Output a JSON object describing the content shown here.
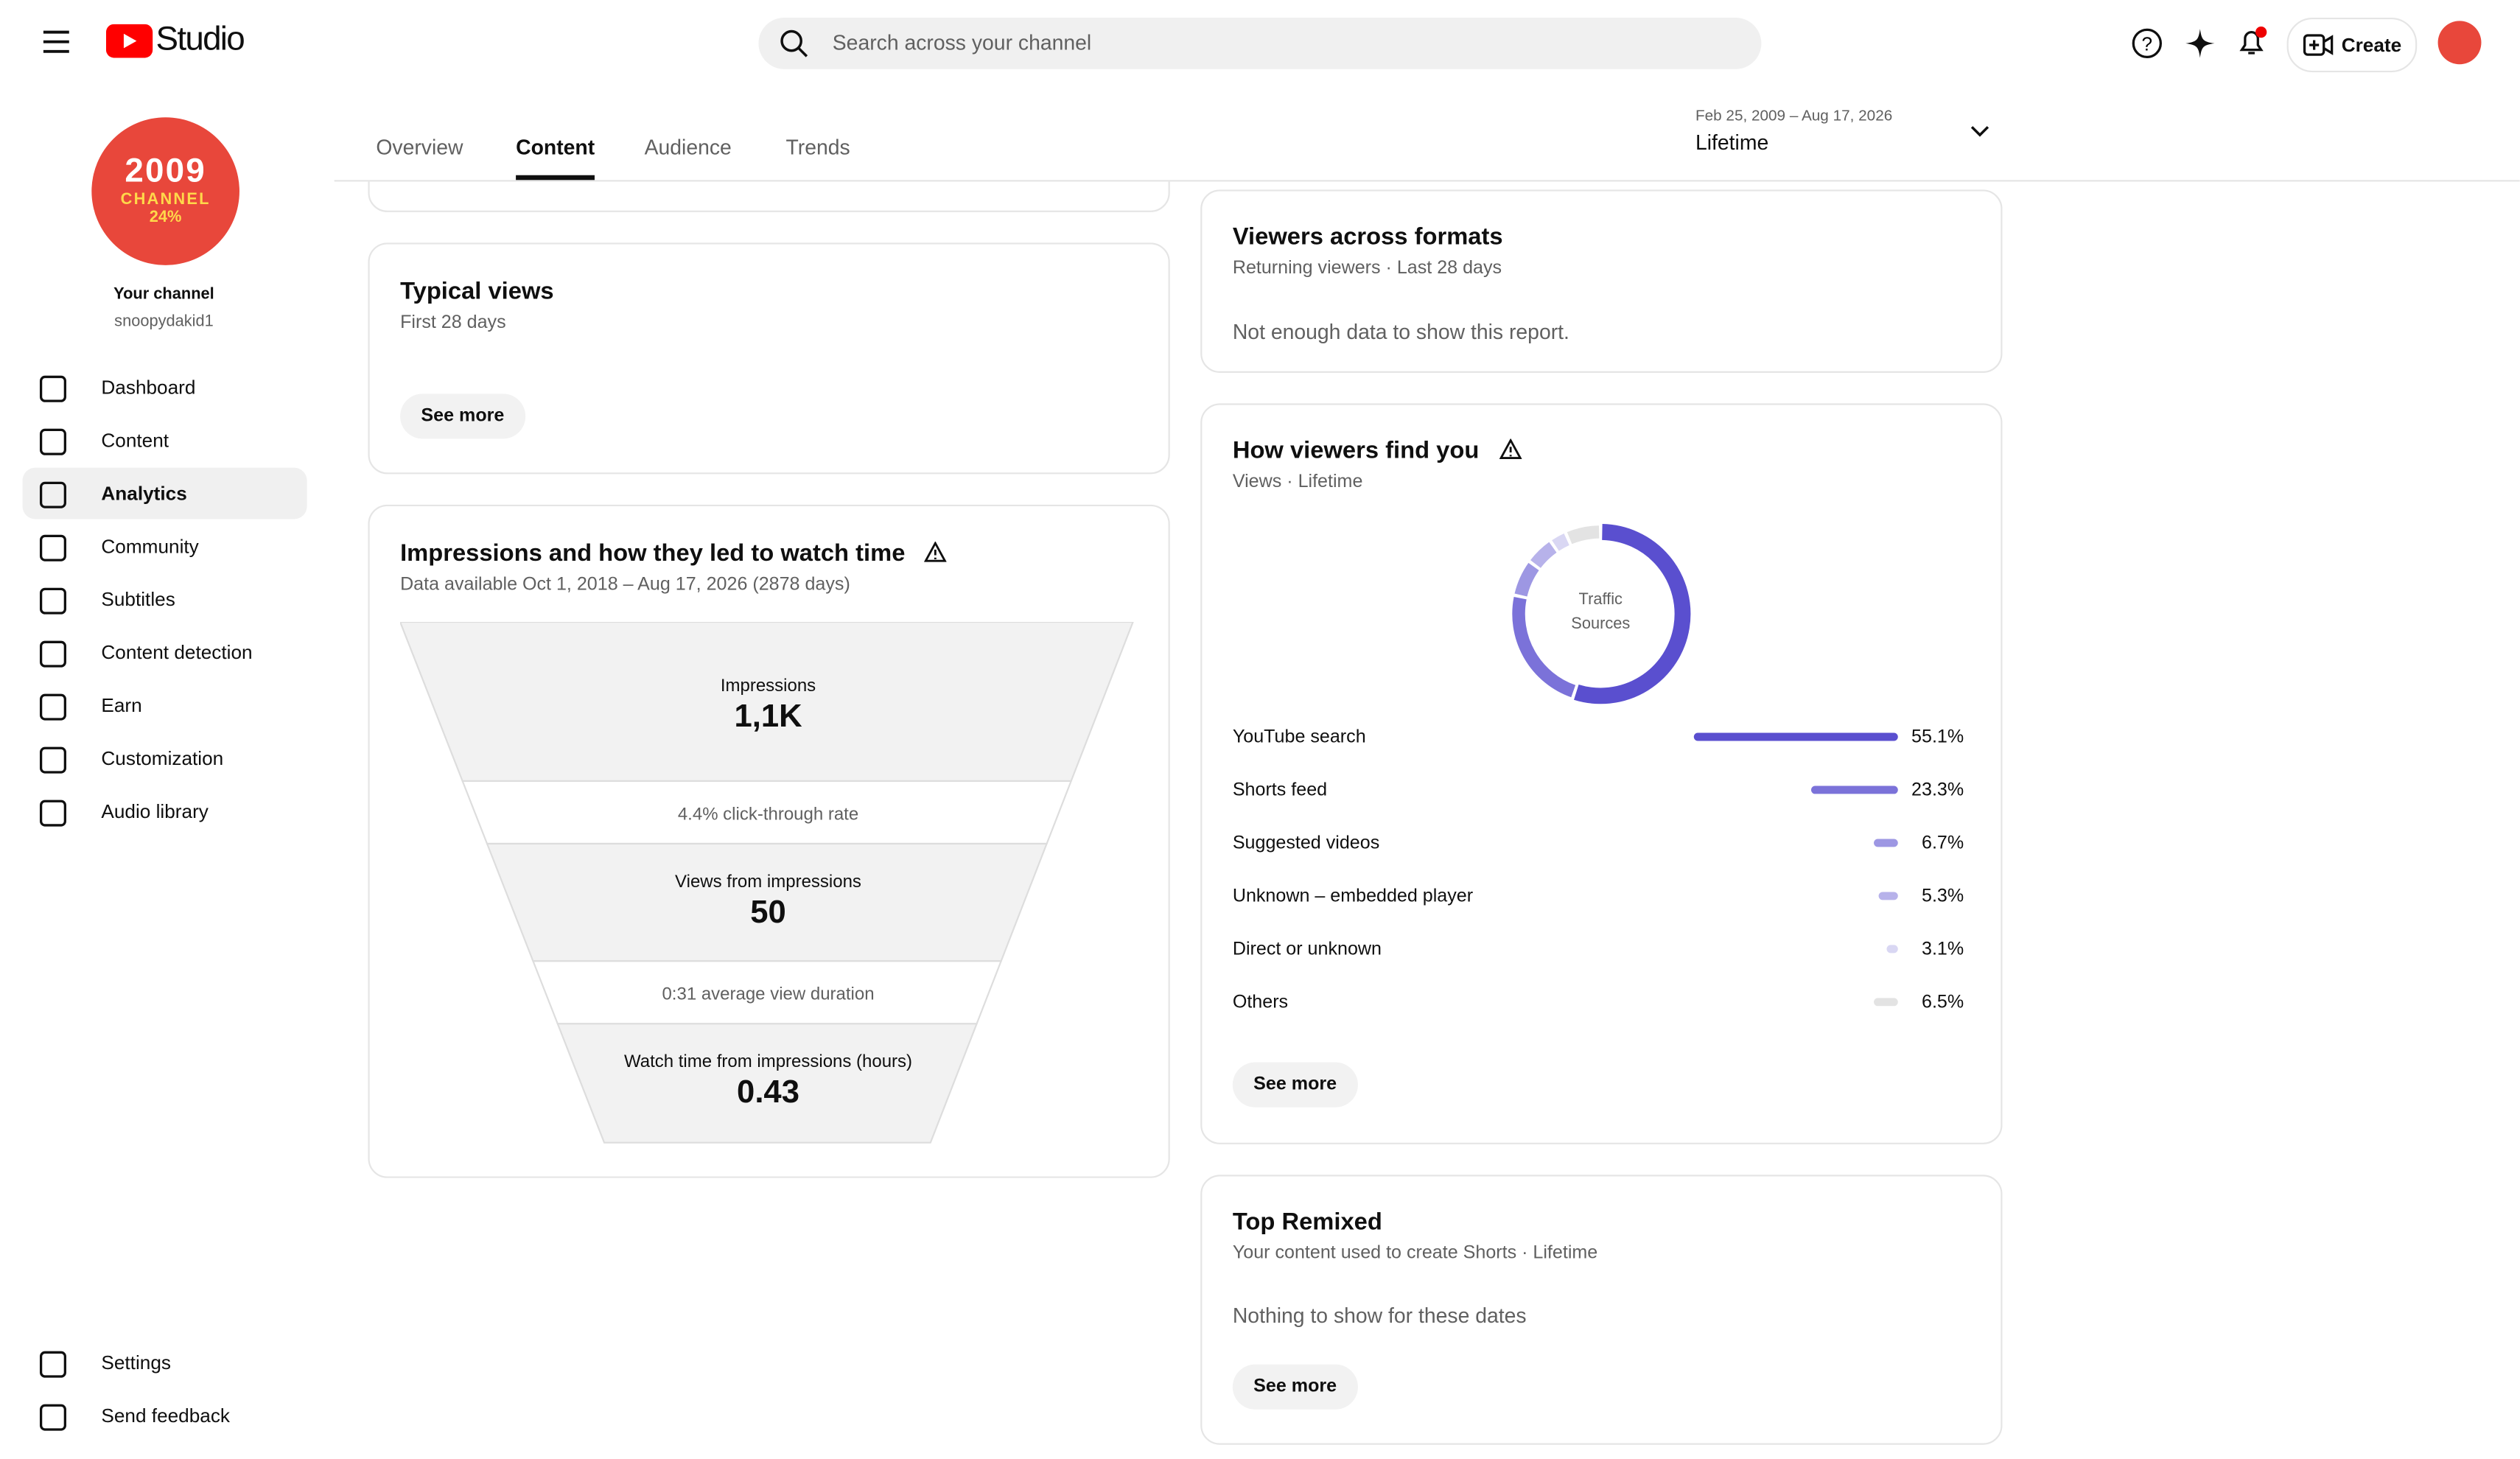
{
  "header": {
    "app_name": "Studio",
    "search_placeholder": "Search across your channel",
    "create_button": "Create"
  },
  "sidebar": {
    "avatar": {
      "line1": "2009",
      "line2": "CHANNEL",
      "line3": "24%"
    },
    "channel_label": "Your channel",
    "handle": "snoopydakid1",
    "nav": [
      "Dashboard",
      "Content",
      "Analytics",
      "Community",
      "Subtitles",
      "Content detection",
      "Earn",
      "Customization",
      "Audio library"
    ],
    "active_nav": 2,
    "footer_nav": [
      "Settings",
      "Send feedback"
    ]
  },
  "tabs": {
    "items": [
      "Overview",
      "Content",
      "Audience",
      "Trends"
    ],
    "active": 1
  },
  "date_range": {
    "range": "Feb 25, 2009 – Aug 17, 2026",
    "period": "Lifetime"
  },
  "typical_views": {
    "title": "Typical views",
    "subtitle": "First 28 days",
    "button": "See more"
  },
  "impressions": {
    "title": "Impressions and how they led to watch time",
    "subtitle": "Data available Oct 1, 2018 – Aug 17, 2026 (2878 days)",
    "impressions_label": "Impressions",
    "impressions_value": "1,1K",
    "ctr": "4.4% click-through rate",
    "views_label": "Views from impressions",
    "views_value": "50",
    "avg_duration": "0:31 average view duration",
    "watch_label": "Watch time from impressions (hours)",
    "watch_value": "0.43"
  },
  "viewers_formats": {
    "title": "Viewers across formats",
    "subtitle": "Returning viewers · Last 28 days",
    "message": "Not enough data to show this report."
  },
  "traffic_sources": {
    "title": "How viewers find you",
    "subtitle": "Views · Lifetime",
    "center_label": "Traffic Sources",
    "sources": [
      {
        "name": "YouTube search",
        "value": 55.1,
        "label": "55.1%",
        "color": "#5a4fcf"
      },
      {
        "name": "Shorts feed",
        "value": 23.3,
        "label": "23.3%",
        "color": "#7b72d9"
      },
      {
        "name": "Suggested videos",
        "value": 6.7,
        "label": "6.7%",
        "color": "#9d97e3"
      },
      {
        "name": "Unknown – embedded player",
        "value": 5.3,
        "label": "5.3%",
        "color": "#b7b2ea"
      },
      {
        "name": "Direct or unknown",
        "value": 3.1,
        "label": "3.1%",
        "color": "#d9d7f3"
      },
      {
        "name": "Others",
        "value": 6.5,
        "label": "6.5%",
        "color": "#e3e3e3"
      }
    ],
    "button": "See more"
  },
  "top_remixed": {
    "title": "Top Remixed",
    "subtitle": "Your content used to create Shorts · Lifetime",
    "message": "Nothing to show for these dates",
    "button": "See more"
  }
}
